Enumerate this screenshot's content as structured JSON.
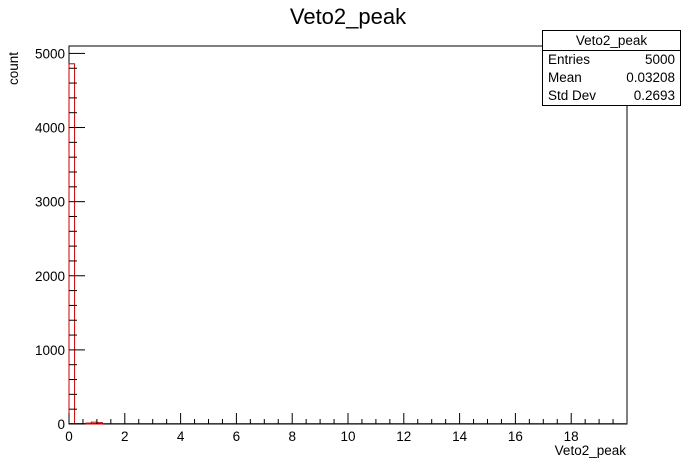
{
  "chart_data": {
    "type": "bar",
    "title": "Veto2_peak",
    "xlabel": "Veto2_peak",
    "ylabel": "count",
    "xlim": [
      0,
      20
    ],
    "ylim": [
      0,
      5100
    ],
    "grid": false,
    "x_ticks": [
      0,
      2,
      4,
      6,
      8,
      10,
      12,
      14,
      16,
      18
    ],
    "y_ticks": [
      0,
      1000,
      2000,
      3000,
      4000,
      5000
    ],
    "bin_width": 0.2,
    "bins": [
      {
        "x0": 0.0,
        "x1": 0.2,
        "value": 4860
      },
      {
        "x0": 0.6,
        "x1": 0.8,
        "value": 12
      },
      {
        "x0": 0.8,
        "x1": 1.0,
        "value": 25
      },
      {
        "x0": 1.0,
        "x1": 1.2,
        "value": 18
      }
    ],
    "colors": {
      "histogram": "#cc0000",
      "axis": "#000000"
    }
  },
  "stats": {
    "title": "Veto2_peak",
    "rows": [
      {
        "label": "Entries",
        "value": "5000"
      },
      {
        "label": "Mean",
        "value": "0.03208"
      },
      {
        "label": "Std Dev",
        "value": "0.2693"
      }
    ]
  }
}
